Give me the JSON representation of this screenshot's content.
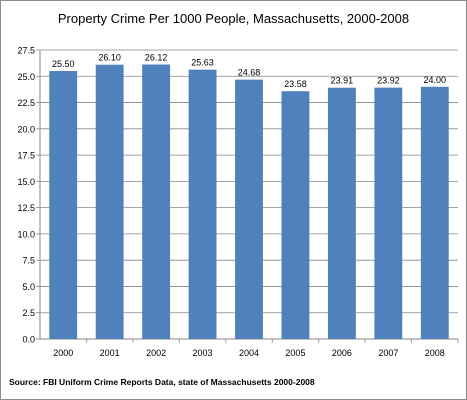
{
  "chart_data": {
    "type": "bar",
    "title": "Property Crime Per 1000 People, Massachusetts,  2000-2008",
    "xlabel": "",
    "ylabel": "",
    "categories": [
      "2000",
      "2001",
      "2002",
      "2003",
      "2004",
      "2005",
      "2006",
      "2007",
      "2008"
    ],
    "values": [
      25.5,
      26.1,
      26.12,
      25.63,
      24.68,
      23.58,
      23.91,
      23.92,
      24.0
    ],
    "value_labels": [
      "25.50",
      "26.10",
      "26.12",
      "25.63",
      "24.68",
      "23.58",
      "23.91",
      "23.92",
      "24.00"
    ],
    "ylim": [
      0,
      27.5
    ],
    "yticks": [
      "0.0",
      "2.5",
      "5.0",
      "7.5",
      "10.0",
      "12.5",
      "15.0",
      "17.5",
      "20.0",
      "22.5",
      "25.0",
      "27.5"
    ],
    "grid": true,
    "legend": "none",
    "bar_color": "#4f81bd",
    "source": "Source: FBI Uniform Crime Reports Data, state of Massachusetts 2000-2008"
  }
}
